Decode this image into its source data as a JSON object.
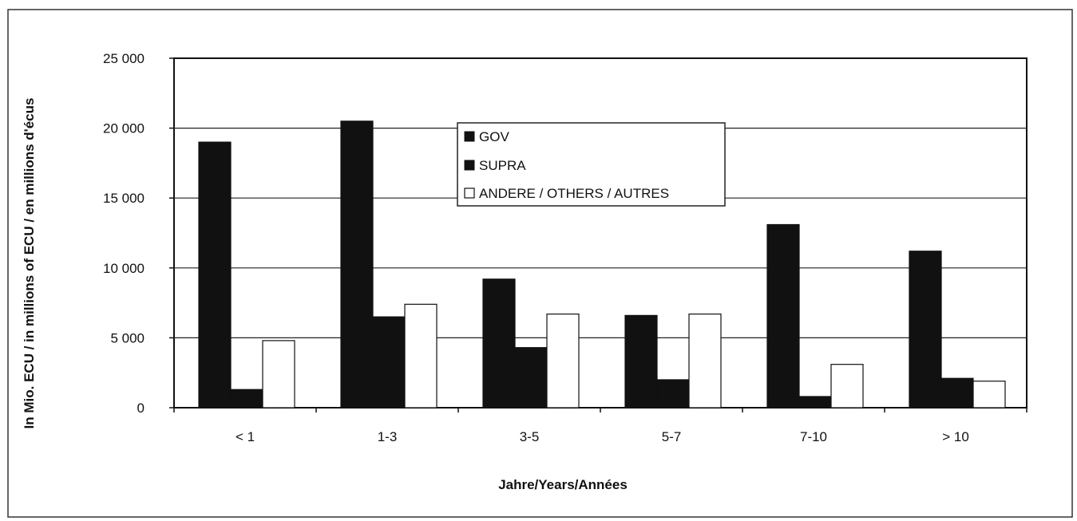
{
  "chart_data": {
    "type": "bar",
    "title": "",
    "xlabel": "Jahre/Years/Années",
    "ylabel": "In Mio. ECU / in millions of ECU / en millions d'écus",
    "categories": [
      "< 1",
      "1-3",
      "3-5",
      "5-7",
      "7-10",
      "> 10"
    ],
    "ylim": [
      0,
      25000
    ],
    "yticks": [
      0,
      5000,
      10000,
      15000,
      20000,
      25000
    ],
    "ytick_labels": [
      "0",
      "5 000",
      "10 000",
      "15 000",
      "20 000",
      "25 000"
    ],
    "grid": true,
    "legend_position": "top-center",
    "series": [
      {
        "name": "GOV",
        "color": "#111111",
        "values": [
          19000,
          20500,
          9200,
          6600,
          13100,
          11200
        ]
      },
      {
        "name": "SUPRA",
        "color": "#111111",
        "values": [
          1300,
          6500,
          4300,
          2000,
          800,
          2100
        ]
      },
      {
        "name": "ANDERE / OTHERS / AUTRES",
        "color": "#ffffff",
        "values": [
          4800,
          7400,
          6700,
          6700,
          3100,
          1900
        ]
      }
    ]
  }
}
